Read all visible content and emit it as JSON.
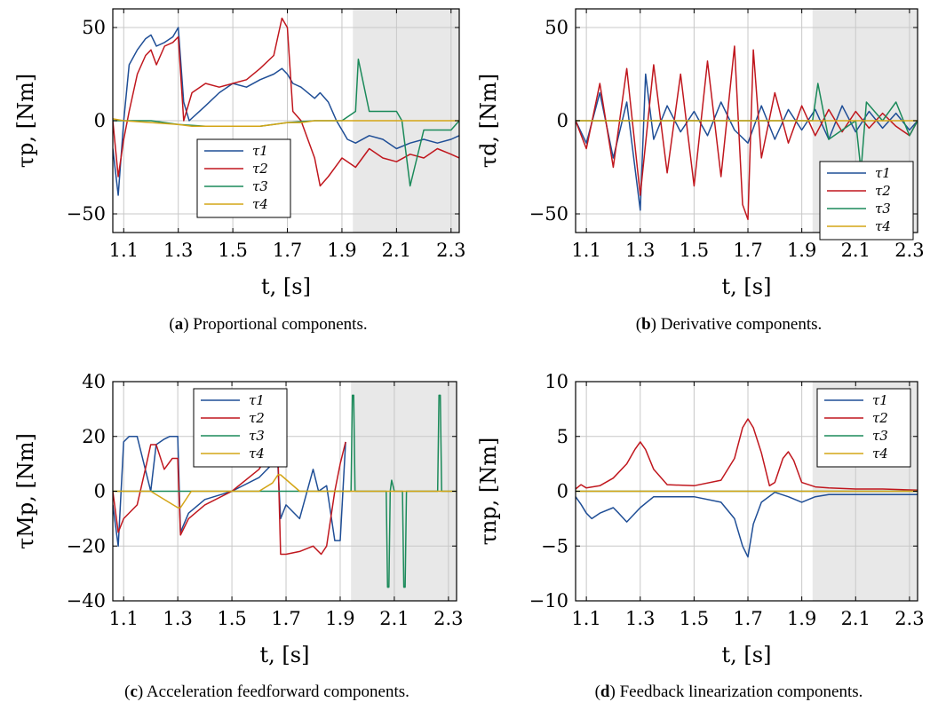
{
  "chart_data": [
    {
      "type": "line",
      "panel": "a",
      "caption_letter": "a",
      "caption_text": "Proportional components.",
      "xlabel": "t, [s]",
      "ylabel": "τp, [Nm]",
      "xlim": [
        1.06,
        2.33
      ],
      "ylim": [
        -60,
        60
      ],
      "xticks": [
        "1.1",
        "1.3",
        "1.5",
        "1.7",
        "1.9",
        "2.1",
        "2.3"
      ],
      "yticks": [
        "50",
        "0",
        "−50"
      ],
      "ytick_values": [
        50,
        0,
        -50
      ],
      "grid": true,
      "shaded_region": [
        1.94,
        2.33
      ],
      "legend_position": "lower-center",
      "series": [
        {
          "name": "τ1",
          "color": "#1f4e96",
          "x": [
            1.06,
            1.08,
            1.1,
            1.12,
            1.15,
            1.18,
            1.2,
            1.22,
            1.25,
            1.28,
            1.3,
            1.32,
            1.34,
            1.4,
            1.45,
            1.5,
            1.55,
            1.6,
            1.65,
            1.68,
            1.7,
            1.72,
            1.75,
            1.8,
            1.82,
            1.85,
            1.88,
            1.9,
            1.92,
            1.95,
            2.0,
            2.05,
            2.1,
            2.15,
            2.2,
            2.25,
            2.3,
            2.33
          ],
          "y": [
            -15,
            -40,
            0,
            30,
            38,
            44,
            46,
            40,
            42,
            45,
            50,
            10,
            0,
            8,
            15,
            20,
            18,
            22,
            25,
            28,
            25,
            20,
            18,
            12,
            15,
            10,
            0,
            -5,
            -10,
            -12,
            -8,
            -10,
            -15,
            -12,
            -10,
            -12,
            -10,
            -8
          ]
        },
        {
          "name": "τ2",
          "color": "#c0171e",
          "x": [
            1.06,
            1.08,
            1.1,
            1.12,
            1.15,
            1.18,
            1.2,
            1.22,
            1.25,
            1.28,
            1.3,
            1.32,
            1.35,
            1.4,
            1.45,
            1.5,
            1.55,
            1.6,
            1.65,
            1.68,
            1.7,
            1.72,
            1.75,
            1.8,
            1.82,
            1.85,
            1.9,
            1.95,
            2.0,
            2.05,
            2.1,
            2.15,
            2.2,
            2.25,
            2.3,
            2.33
          ],
          "y": [
            0,
            -30,
            -10,
            5,
            25,
            35,
            38,
            30,
            40,
            42,
            45,
            0,
            15,
            20,
            18,
            20,
            22,
            28,
            35,
            55,
            50,
            5,
            0,
            -20,
            -35,
            -30,
            -20,
            -25,
            -15,
            -20,
            -22,
            -18,
            -20,
            -15,
            -18,
            -20
          ]
        },
        {
          "name": "τ3",
          "color": "#1b8a5a",
          "x": [
            1.06,
            1.2,
            1.3,
            1.4,
            1.5,
            1.6,
            1.7,
            1.8,
            1.9,
            1.95,
            1.96,
            2.0,
            2.05,
            2.1,
            2.12,
            2.15,
            2.2,
            2.25,
            2.3,
            2.33
          ],
          "y": [
            0,
            0,
            -2,
            -3,
            -3,
            -3,
            -1,
            0,
            0,
            5,
            33,
            5,
            5,
            5,
            0,
            -35,
            -5,
            -5,
            -5,
            0
          ]
        },
        {
          "name": "τ4",
          "color": "#d4a516",
          "x": [
            1.06,
            1.1,
            1.2,
            1.3,
            1.35,
            1.4,
            1.5,
            1.6,
            1.65,
            1.7,
            1.75,
            1.8,
            1.9,
            2.0,
            2.1,
            2.2,
            2.3,
            2.33
          ],
          "y": [
            1,
            0,
            -1,
            -2,
            -3,
            -3,
            -3,
            -3,
            -2,
            -1,
            -1,
            0,
            0,
            0,
            0,
            0,
            0,
            0
          ]
        }
      ]
    },
    {
      "type": "line",
      "panel": "b",
      "caption_letter": "b",
      "caption_text": "Derivative components.",
      "xlabel": "t, [s]",
      "ylabel": "τd, [Nm]",
      "xlim": [
        1.06,
        2.33
      ],
      "ylim": [
        -60,
        60
      ],
      "xticks": [
        "1.1",
        "1.3",
        "1.5",
        "1.7",
        "1.9",
        "2.1",
        "2.3"
      ],
      "yticks": [
        "50",
        "0",
        "−50"
      ],
      "ytick_values": [
        50,
        0,
        -50
      ],
      "grid": true,
      "shaded_region": [
        1.94,
        2.33
      ],
      "legend_position": "lower-right",
      "series": [
        {
          "name": "τ1",
          "color": "#1f4e96",
          "x": [
            1.06,
            1.1,
            1.15,
            1.2,
            1.25,
            1.3,
            1.32,
            1.35,
            1.4,
            1.45,
            1.5,
            1.55,
            1.6,
            1.65,
            1.7,
            1.75,
            1.8,
            1.85,
            1.9,
            1.95,
            2.0,
            2.05,
            2.1,
            2.15,
            2.2,
            2.25,
            2.3,
            2.33
          ],
          "y": [
            0,
            -12,
            15,
            -20,
            10,
            -48,
            25,
            -10,
            8,
            -6,
            5,
            -8,
            10,
            -5,
            -12,
            8,
            -10,
            6,
            -5,
            6,
            -10,
            8,
            -6,
            5,
            -4,
            4,
            -5,
            0
          ]
        },
        {
          "name": "τ2",
          "color": "#c0171e",
          "x": [
            1.06,
            1.1,
            1.15,
            1.2,
            1.25,
            1.3,
            1.35,
            1.4,
            1.45,
            1.5,
            1.55,
            1.6,
            1.65,
            1.68,
            1.7,
            1.72,
            1.75,
            1.8,
            1.85,
            1.9,
            1.95,
            2.0,
            2.05,
            2.1,
            2.15,
            2.2,
            2.25,
            2.3,
            2.33
          ],
          "y": [
            0,
            -15,
            20,
            -25,
            28,
            -40,
            30,
            -28,
            25,
            -35,
            32,
            -30,
            40,
            -45,
            -53,
            38,
            -20,
            15,
            -12,
            8,
            -8,
            6,
            -6,
            5,
            -4,
            4,
            -3,
            -8,
            0
          ]
        },
        {
          "name": "τ3",
          "color": "#1b8a5a",
          "x": [
            1.06,
            1.5,
            1.9,
            1.94,
            1.96,
            2.0,
            2.1,
            2.12,
            2.14,
            2.2,
            2.25,
            2.3,
            2.33
          ],
          "y": [
            0,
            0,
            0,
            0,
            20,
            -10,
            0,
            -27,
            10,
            0,
            10,
            -8,
            0
          ]
        },
        {
          "name": "τ4",
          "color": "#d4a516",
          "x": [
            1.06,
            1.5,
            2.0,
            2.33
          ],
          "y": [
            0,
            0,
            0,
            0
          ]
        }
      ]
    },
    {
      "type": "line",
      "panel": "c",
      "caption_letter": "c",
      "caption_text": "Acceleration feedforward components.",
      "xlabel": "t, [s]",
      "ylabel": "τMp, [Nm]",
      "xlim": [
        1.06,
        2.33
      ],
      "ylim": [
        -40,
        40
      ],
      "xticks": [
        "1.1",
        "1.3",
        "1.5",
        "1.7",
        "1.9",
        "2.1",
        "2.3"
      ],
      "yticks": [
        "40",
        "20",
        "0",
        "−20",
        "−40"
      ],
      "ytick_values": [
        40,
        20,
        0,
        -20,
        -40
      ],
      "grid": true,
      "shaded_region": [
        1.94,
        2.33
      ],
      "legend_position": "top-center",
      "series": [
        {
          "name": "τ1",
          "color": "#1f4e96",
          "x": [
            1.06,
            1.08,
            1.1,
            1.12,
            1.15,
            1.2,
            1.22,
            1.25,
            1.27,
            1.3,
            1.31,
            1.34,
            1.4,
            1.5,
            1.6,
            1.65,
            1.67,
            1.68,
            1.7,
            1.75,
            1.8,
            1.82,
            1.85,
            1.88,
            1.9,
            1.92
          ],
          "y": [
            -5,
            -20,
            18,
            20,
            20,
            0,
            17,
            19,
            20,
            20,
            -15,
            -8,
            -3,
            0,
            5,
            10,
            9,
            -10,
            -5,
            -10,
            8,
            0,
            2,
            -18,
            -18,
            18
          ]
        },
        {
          "name": "τ2",
          "color": "#c0171e",
          "x": [
            1.06,
            1.08,
            1.1,
            1.15,
            1.18,
            1.2,
            1.22,
            1.25,
            1.28,
            1.3,
            1.31,
            1.34,
            1.4,
            1.5,
            1.6,
            1.65,
            1.67,
            1.68,
            1.7,
            1.75,
            1.8,
            1.83,
            1.85,
            1.88,
            1.9,
            1.92
          ],
          "y": [
            0,
            -15,
            -10,
            -5,
            8,
            17,
            17,
            8,
            12,
            12,
            -16,
            -10,
            -5,
            0,
            8,
            16,
            14,
            -23,
            -23,
            -22,
            -20,
            -23,
            -20,
            0,
            10,
            18
          ]
        },
        {
          "name": "τ3",
          "color": "#1b8a5a",
          "x": [
            1.06,
            1.94,
            1.945,
            1.95,
            1.955,
            1.96,
            2.07,
            2.075,
            2.08,
            2.085,
            2.09,
            2.1,
            2.105,
            2.11,
            2.13,
            2.135,
            2.14,
            2.145,
            2.26,
            2.265,
            2.27,
            2.275,
            2.33
          ],
          "y": [
            0,
            0,
            35,
            35,
            0,
            0,
            0,
            -35,
            -35,
            0,
            4,
            0,
            0,
            0,
            0,
            -35,
            -35,
            0,
            0,
            35,
            35,
            0,
            0
          ]
        },
        {
          "name": "τ4",
          "color": "#d4a516",
          "x": [
            1.06,
            1.2,
            1.3,
            1.31,
            1.35,
            1.6,
            1.65,
            1.67,
            1.68,
            1.75,
            1.8,
            2.33
          ],
          "y": [
            0,
            0,
            -6,
            -6,
            0,
            0,
            3,
            6,
            6,
            0,
            0,
            0
          ]
        }
      ]
    },
    {
      "type": "line",
      "panel": "d",
      "caption_letter": "d",
      "caption_text": "Feedback linearization components.",
      "xlabel": "t, [s]",
      "ylabel": "τnp, [Nm]",
      "xlim": [
        1.06,
        2.33
      ],
      "ylim": [
        -10,
        10
      ],
      "xticks": [
        "1.1",
        "1.3",
        "1.5",
        "1.7",
        "1.9",
        "2.1",
        "2.3"
      ],
      "yticks": [
        "10",
        "5",
        "0",
        "−5",
        "−10"
      ],
      "ytick_values": [
        10,
        5,
        0,
        -5,
        -10
      ],
      "grid": true,
      "shaded_region": [
        1.94,
        2.33
      ],
      "legend_position": "top-right",
      "series": [
        {
          "name": "τ1",
          "color": "#1f4e96",
          "x": [
            1.06,
            1.08,
            1.1,
            1.12,
            1.15,
            1.2,
            1.22,
            1.25,
            1.3,
            1.35,
            1.4,
            1.5,
            1.6,
            1.65,
            1.68,
            1.7,
            1.72,
            1.75,
            1.8,
            1.85,
            1.88,
            1.9,
            1.95,
            2.0,
            2.1,
            2.2,
            2.33
          ],
          "y": [
            -0.5,
            -1.2,
            -2.0,
            -2.5,
            -2.0,
            -1.5,
            -2.0,
            -2.8,
            -1.5,
            -0.5,
            -0.5,
            -0.5,
            -1.0,
            -2.5,
            -5.0,
            -6.0,
            -3.0,
            -1.0,
            -0.1,
            -0.5,
            -0.8,
            -1.0,
            -0.5,
            -0.3,
            -0.3,
            -0.3,
            -0.3
          ]
        },
        {
          "name": "τ2",
          "color": "#c0171e",
          "x": [
            1.06,
            1.08,
            1.1,
            1.15,
            1.2,
            1.25,
            1.28,
            1.3,
            1.32,
            1.35,
            1.4,
            1.5,
            1.6,
            1.65,
            1.68,
            1.7,
            1.72,
            1.75,
            1.78,
            1.8,
            1.83,
            1.85,
            1.87,
            1.9,
            1.95,
            2.0,
            2.1,
            2.2,
            2.33
          ],
          "y": [
            0.2,
            0.6,
            0.3,
            0.5,
            1.2,
            2.5,
            3.8,
            4.5,
            3.8,
            2.0,
            0.6,
            0.5,
            1.0,
            3.0,
            5.8,
            6.6,
            5.8,
            3.5,
            0.5,
            0.8,
            3.0,
            3.6,
            2.8,
            0.8,
            0.4,
            0.3,
            0.2,
            0.2,
            0.1
          ]
        },
        {
          "name": "τ3",
          "color": "#1b8a5a",
          "x": [
            1.06,
            2.33
          ],
          "y": [
            0,
            0
          ]
        },
        {
          "name": "τ4",
          "color": "#d4a516",
          "x": [
            1.06,
            2.33
          ],
          "y": [
            0,
            0
          ]
        }
      ]
    }
  ]
}
